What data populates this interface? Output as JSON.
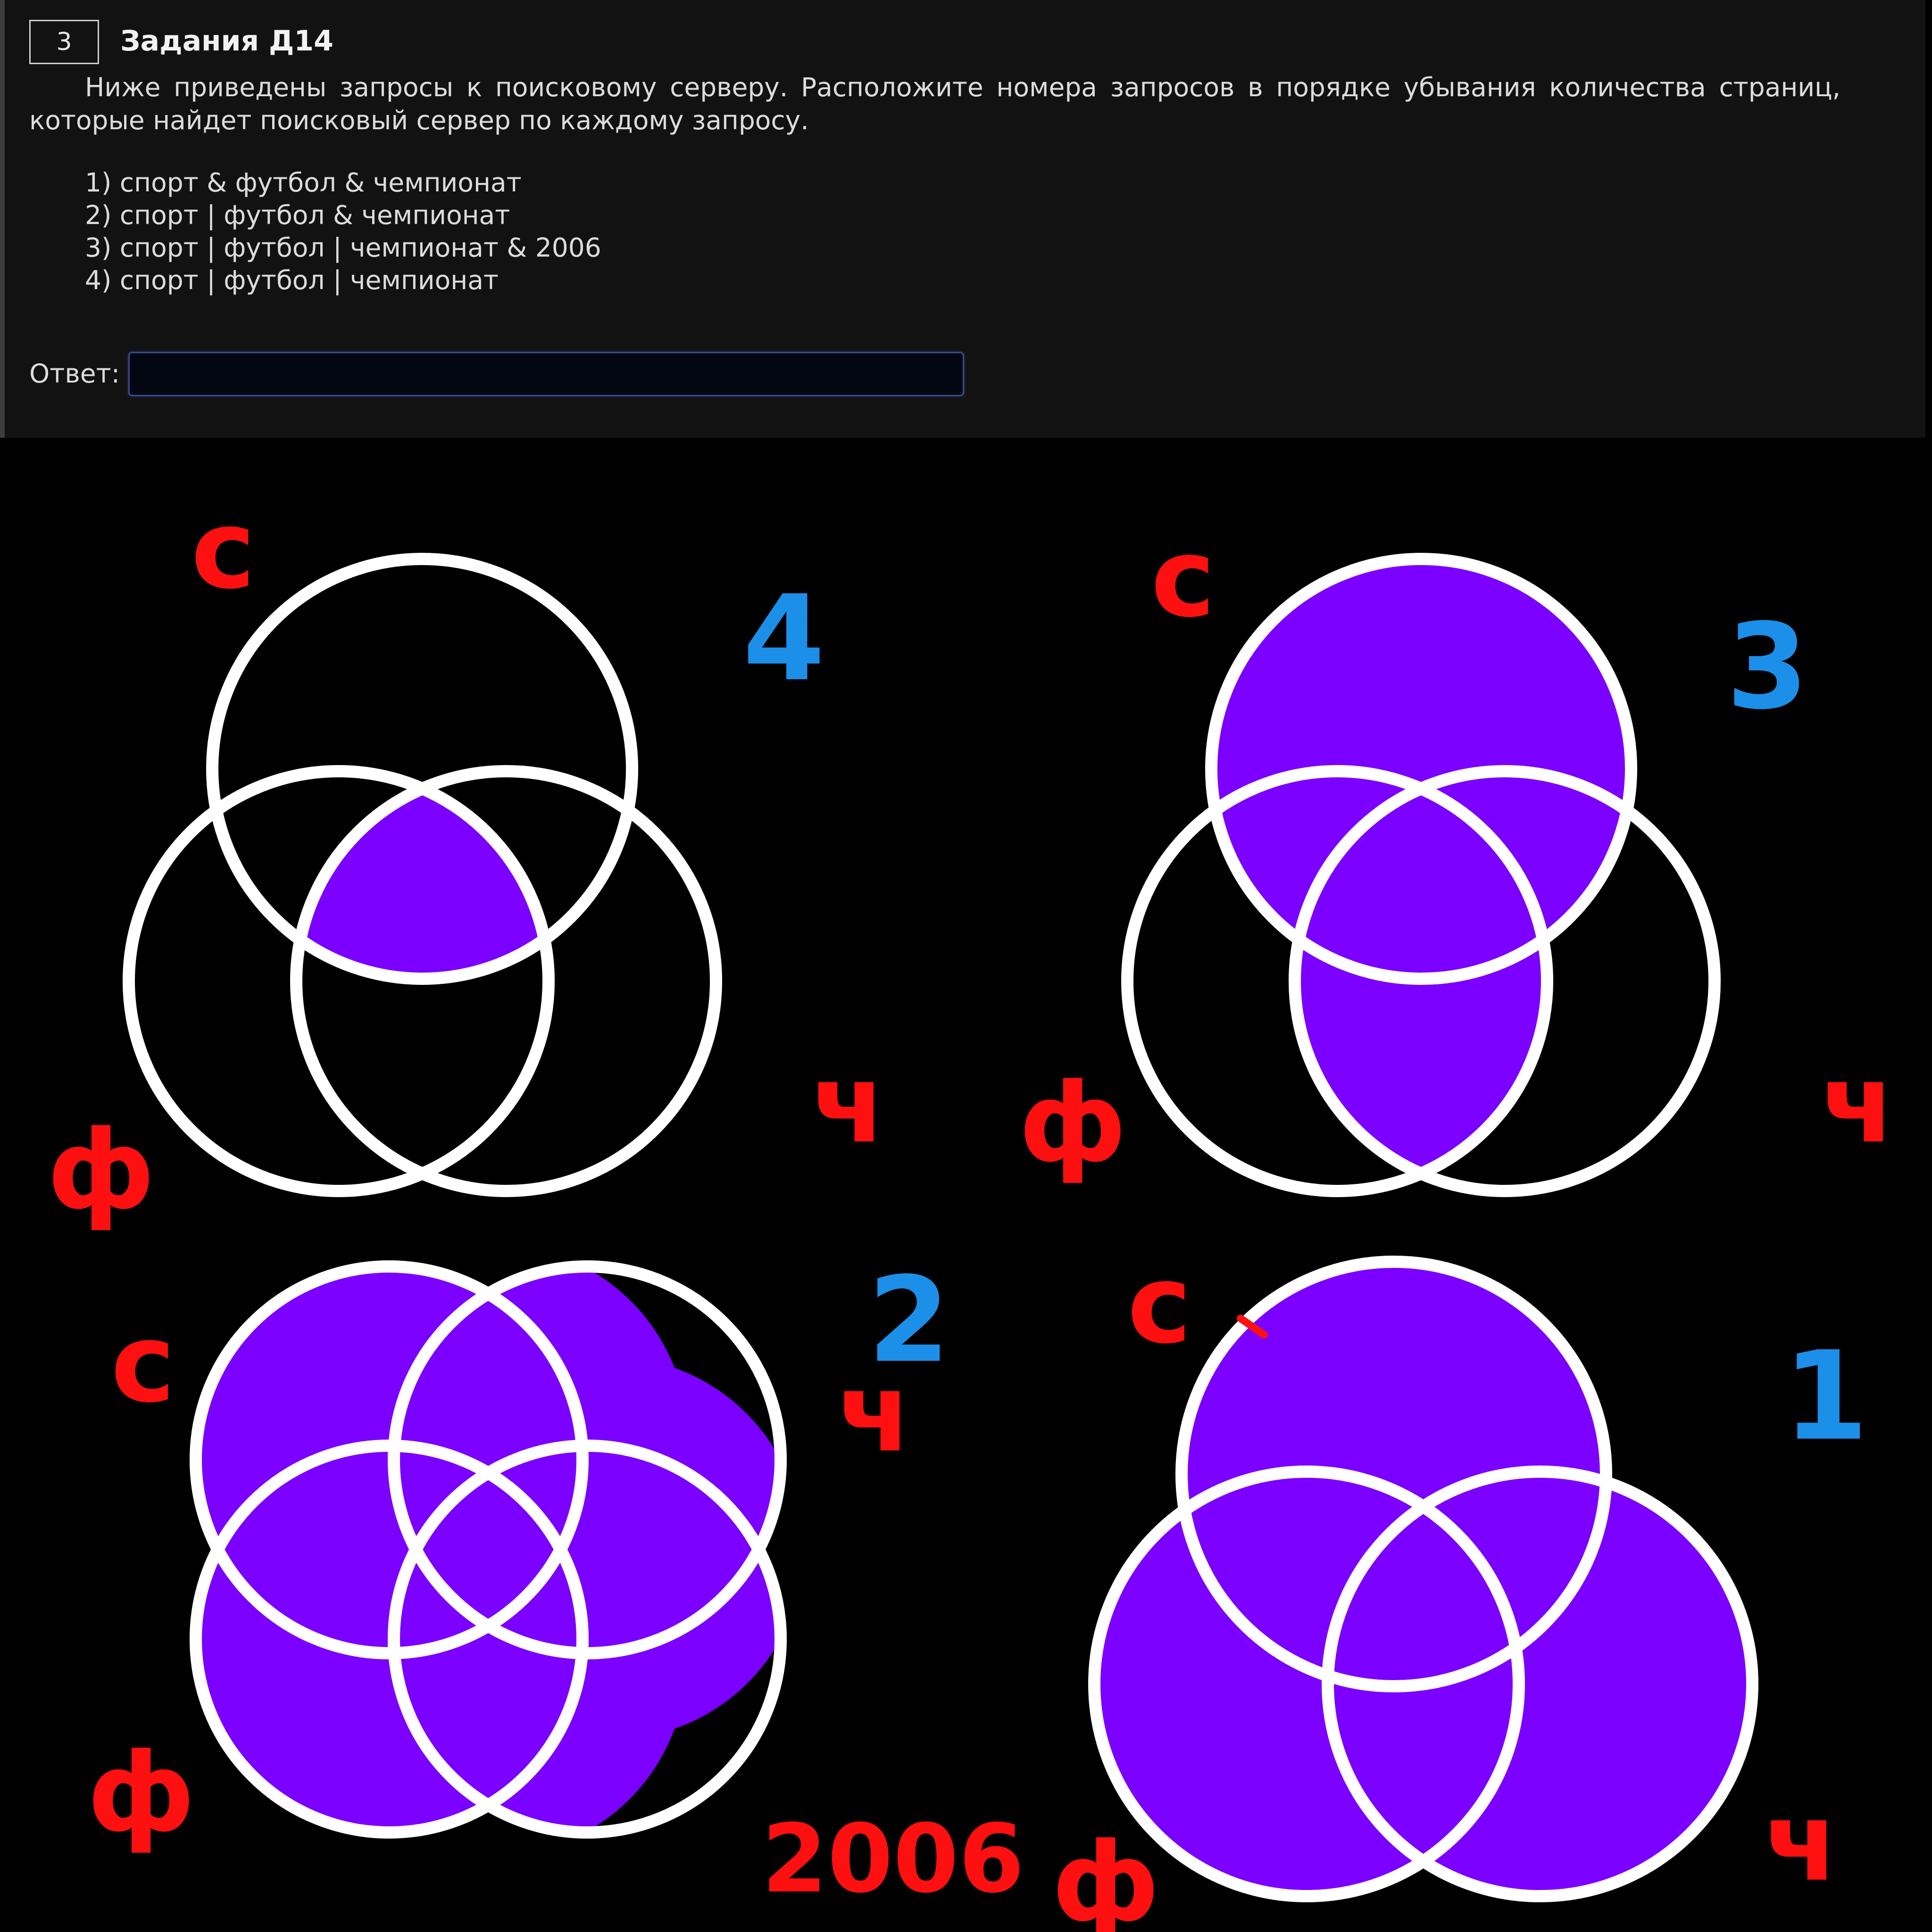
{
  "task": {
    "number": "3",
    "title": "Задания Д14",
    "text": "Ниже приведены запросы к поисковому серверу. Расположите номера запросов в порядке убывания количества страниц, которые найдет поисковый сервер по каждому запросу.",
    "queries": [
      "1) спорт & футбол & чемпионат",
      "2) спорт | футбол & чемпионат",
      "3) спорт | футбол | чемпионат & 2006",
      "4) спорт | футбол | чемпионат"
    ],
    "answer_label": "Ответ:",
    "answer_value": ""
  },
  "annotations": {
    "fill_color": "#7b00ff",
    "label_color": "#ff1010",
    "number_color": "#1c8fe8",
    "diagrams": [
      {
        "rank": "4",
        "labels": [
          "с",
          "ф",
          "ч"
        ]
      },
      {
        "rank": "3",
        "labels": [
          "с",
          "ф",
          "ч"
        ]
      },
      {
        "rank": "2",
        "labels": [
          "с",
          "ч",
          "ф",
          "2006"
        ]
      },
      {
        "rank": "1",
        "labels": [
          "с",
          "ф",
          "ч"
        ]
      }
    ]
  }
}
